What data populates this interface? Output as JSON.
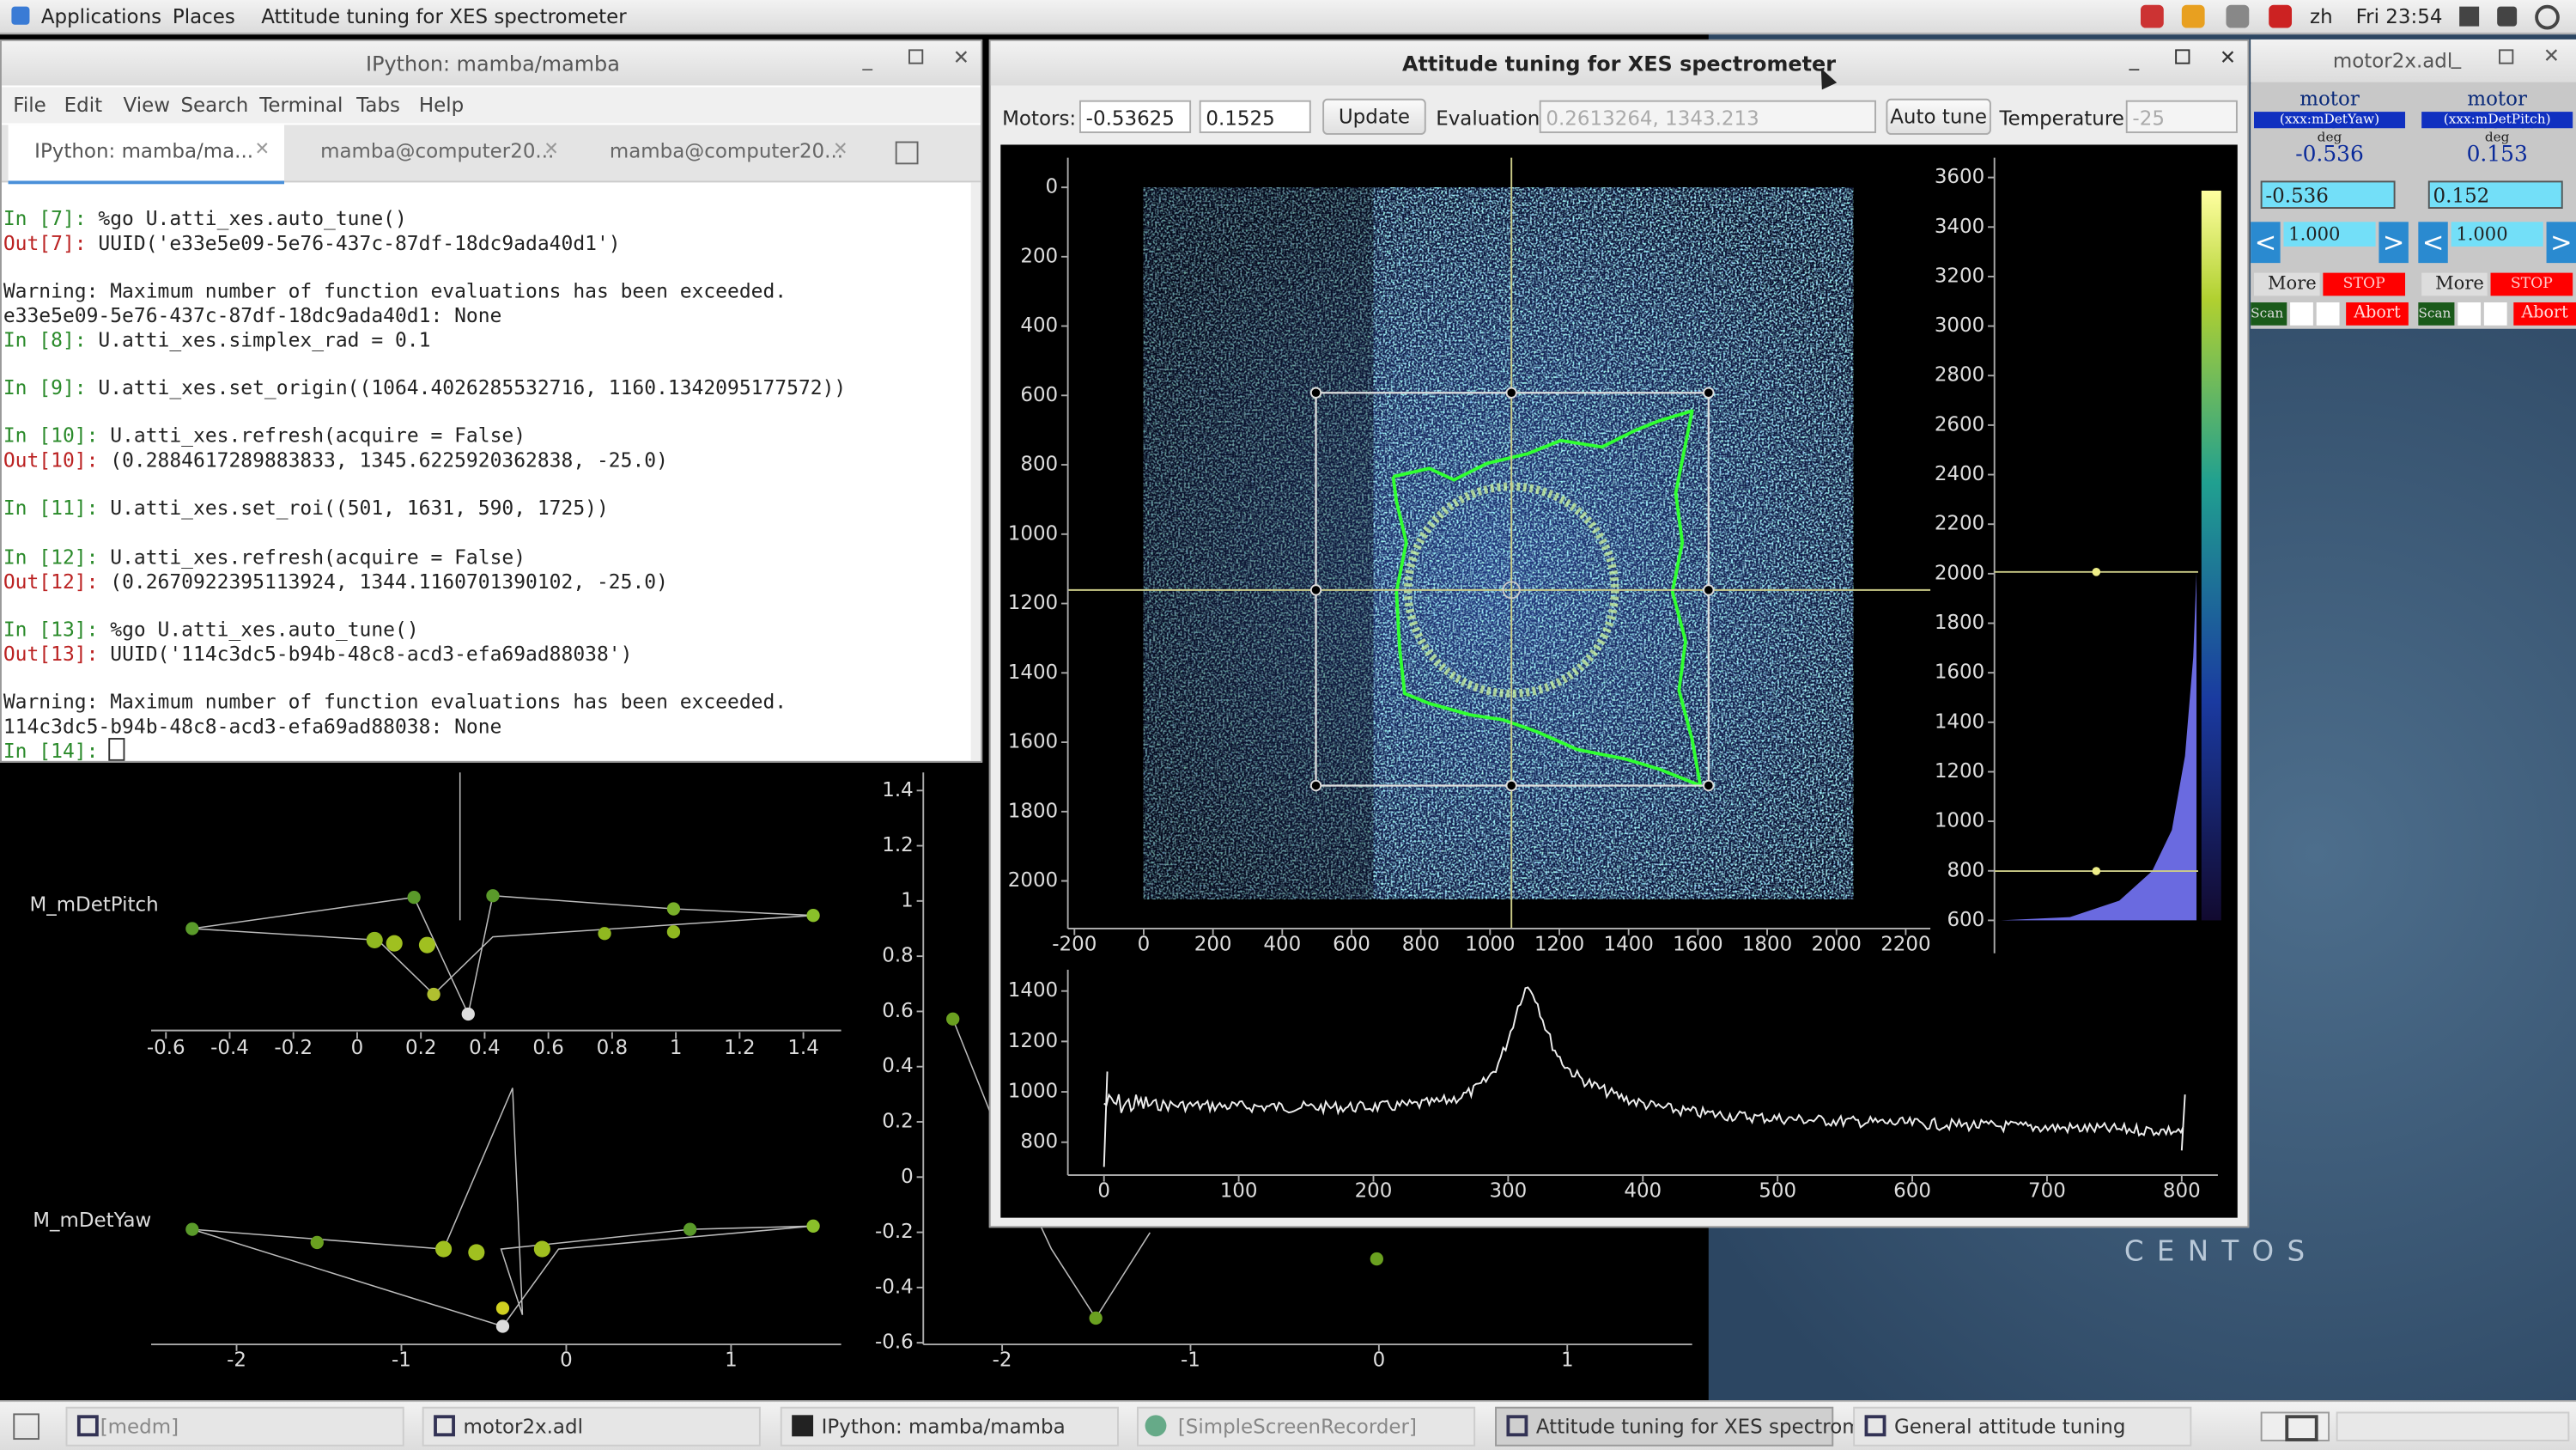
{
  "top_bar": {
    "menus": [
      "Applications",
      "Places",
      "Attitude tuning for XES spectrometer"
    ],
    "language": "zh",
    "clock": "Fri 23:54"
  },
  "terminal": {
    "title": "IPython: mamba/mamba",
    "menu": [
      "File",
      "Edit",
      "View",
      "Search",
      "Terminal",
      "Tabs",
      "Help"
    ],
    "tabs": [
      "IPython: mamba/ma...",
      "mamba@computer20...",
      "mamba@computer20..."
    ],
    "blocks": [
      [
        "In [7]: %go U.atti_xes.auto_tune()",
        "Out[7]: UUID('e33e5e09-5e76-437c-87df-18dc9ada40d1')"
      ],
      [
        "Warning: Maximum number of function evaluations has been exceeded.",
        "e33e5e09-5e76-437c-87df-18dc9ada40d1: None",
        "In [8]: U.atti_xes.simplex_rad = 0.1"
      ],
      [
        "In [9]: U.atti_xes.set_origin((1064.4026285532716, 1160.1342095177572))"
      ],
      [
        "In [10]: U.atti_xes.refresh(acquire = False)",
        "Out[10]: (0.2884617289883833, 1345.6225920362838, -25.0)"
      ],
      [
        "In [11]: U.atti_xes.set_roi((501, 1631, 590, 1725))"
      ],
      [
        "In [12]: U.atti_xes.refresh(acquire = False)",
        "Out[12]: (0.2670922395113924, 1344.1160701390102, -25.0)"
      ],
      [
        "In [13]: %go U.atti_xes.auto_tune()",
        "Out[13]: UUID('114c3dc5-b94b-48c8-acd3-efa69ad88038')"
      ],
      [
        "Warning: Maximum number of function evaluations has been exceeded.",
        "114c3dc5-b94b-48c8-acd3-efa69ad88038: None",
        "In [14]:"
      ]
    ]
  },
  "scan_plots": {
    "pitch_label": "M_mDetPitch",
    "yaw_label": "M_mDetYaw",
    "pitch_xticks": [
      -0.6,
      -0.4,
      -0.2,
      0,
      0.2,
      0.4,
      0.6,
      0.8,
      1,
      1.2,
      1.4
    ],
    "yaw_xticks": [
      -2,
      -1,
      0,
      1
    ]
  },
  "side_plot": {
    "yticks": [
      1.4,
      1.2,
      1,
      0.8,
      0.6,
      0.4,
      0.2,
      0,
      -0.2,
      -0.4,
      -0.6
    ],
    "xticks": [
      -2,
      -1,
      0,
      1
    ]
  },
  "tuning_window": {
    "title": "Attitude tuning for XES spectrometer",
    "motors_label": "Motors:",
    "motor_values": [
      "-0.53625",
      "0.1525"
    ],
    "update_button": "Update",
    "evaluation_label": "Evaluation:",
    "evaluation_value": "0.2613264, 1343.213",
    "auto_tune_button": "Auto tune",
    "temperature_label": "Temperature:",
    "temperature_value": "-25",
    "image_xticks": [
      -200,
      0,
      200,
      400,
      600,
      800,
      1000,
      1200,
      1400,
      1600,
      1800,
      2000,
      2200
    ],
    "image_yticks": [
      0,
      200,
      400,
      600,
      800,
      1000,
      1200,
      1400,
      1600,
      1800,
      2000
    ],
    "colorbar_ticks": [
      600,
      800,
      1000,
      1200,
      1400,
      1600,
      1800,
      2000,
      2200,
      2400,
      2600,
      2800,
      3000,
      3200,
      3400,
      3600
    ],
    "spectrum_xticks": [
      0,
      100,
      200,
      300,
      400,
      500,
      600,
      700,
      800
    ],
    "spectrum_yticks": [
      800,
      1000,
      1200,
      1400
    ]
  },
  "motor_window": {
    "title": "motor2x.adl",
    "panels": [
      {
        "name": "motor mDetYaw",
        "pv": "(xxx:mDetYaw)",
        "unit": "deg",
        "readback": "-0.536",
        "setpoint": "-0.536",
        "step": "1.000",
        "left": "<",
        "right": ">",
        "more": "More",
        "stop": "STOP",
        "scan": "Scan",
        "abort": "Abort"
      },
      {
        "name": "motor mDetPitch",
        "pv": "(xxx:mDetPitch)",
        "unit": "deg",
        "readback": "0.153",
        "setpoint": "0.152",
        "step": "1.000",
        "left": "<",
        "right": ">",
        "more": "More",
        "stop": "STOP",
        "scan": "Scan",
        "abort": "Abort"
      }
    ]
  },
  "desktop": {
    "logo": "CENTOS"
  },
  "taskbar": [
    "[medm]",
    "motor2x.adl",
    "IPython: mamba/mamba",
    "[SimpleScreenRecorder]",
    "Attitude tuning for XES spectrometer",
    "General attitude tuning"
  ]
}
